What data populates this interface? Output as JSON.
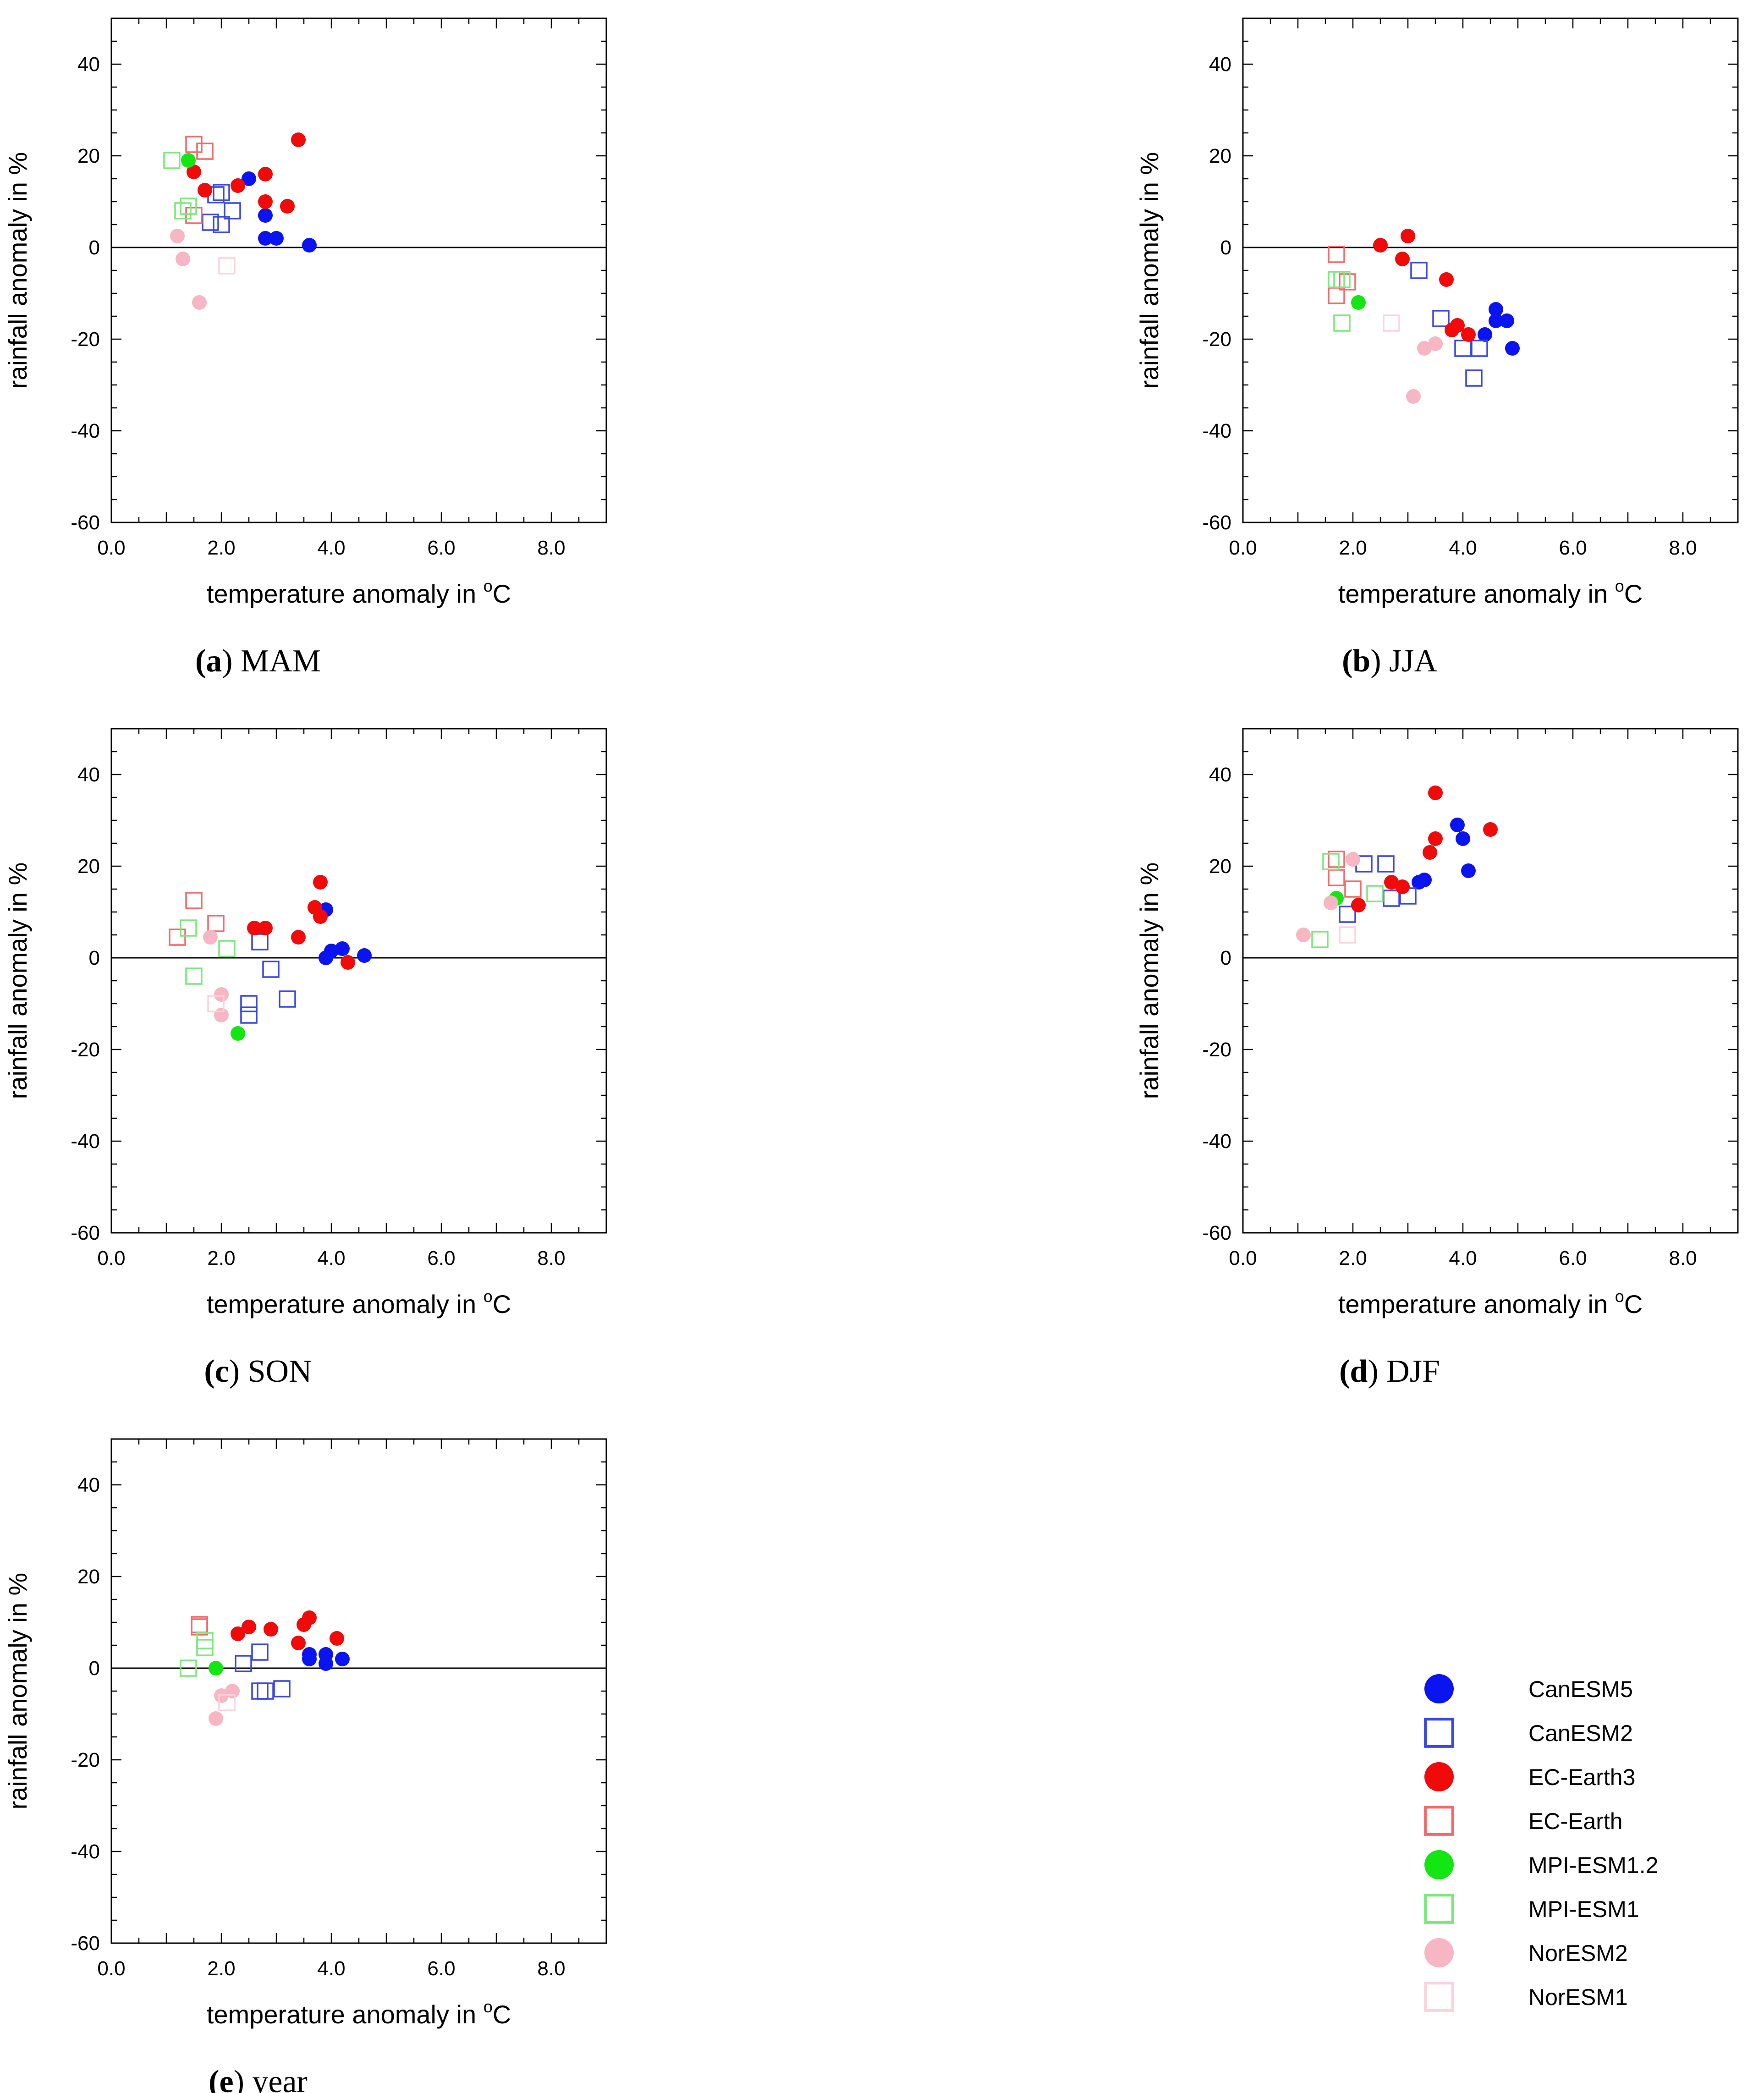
{
  "colors": {
    "CanESM5": "#0a14f0",
    "CanESM2": "#3a48e0",
    "EC-Earth3": "#f00a0a",
    "EC-Earth": "#f26a6a",
    "MPI-ESM1.2": "#14e614",
    "MPI-ESM1": "#7ce87c",
    "NorESM2": "#f7b6c3",
    "NorESM1": "#fbd3dc",
    "axis": "#000000"
  },
  "legend": [
    {
      "name": "CanESM5",
      "marker": "circle"
    },
    {
      "name": "CanESM2",
      "marker": "square"
    },
    {
      "name": "EC-Earth3",
      "marker": "circle"
    },
    {
      "name": "EC-Earth",
      "marker": "square"
    },
    {
      "name": "MPI-ESM1.2",
      "marker": "circle"
    },
    {
      "name": "MPI-ESM1",
      "marker": "square"
    },
    {
      "name": "NorESM2",
      "marker": "circle"
    },
    {
      "name": "NorESM1",
      "marker": "square"
    }
  ],
  "axes": {
    "xlabel_main": "temperature anomaly in ",
    "xlabel_sup": "o",
    "xlabel_unit": "C",
    "ylabel": "rainfall anomaly in %",
    "xlim": [
      0,
      9
    ],
    "ylim": [
      -60,
      50
    ],
    "xticks": [
      0,
      2,
      4,
      6,
      8
    ],
    "xtick_labels": [
      "0.0",
      "2.0",
      "4.0",
      "6.0",
      "8.0"
    ],
    "yticks": [
      40,
      20,
      0,
      -20,
      -40,
      -60
    ],
    "ytick_labels": [
      "40",
      "20",
      "0",
      "-20",
      "-40",
      "-60"
    ]
  },
  "chart_data": [
    {
      "type": "scatter",
      "caption_letter": "(a)",
      "caption_text": " MAM",
      "series": [
        {
          "name": "CanESM5",
          "points": [
            [
              2.5,
              15
            ],
            [
              2.8,
              7
            ],
            [
              2.8,
              2
            ],
            [
              3.0,
              2
            ],
            [
              3.6,
              0.5
            ]
          ]
        },
        {
          "name": "CanESM2",
          "points": [
            [
              1.9,
              11.5
            ],
            [
              2.0,
              12
            ],
            [
              2.2,
              8
            ],
            [
              1.8,
              5.5
            ],
            [
              2.0,
              5
            ]
          ]
        },
        {
          "name": "EC-Earth3",
          "points": [
            [
              3.4,
              23.5
            ],
            [
              1.5,
              16.5
            ],
            [
              1.7,
              12.5
            ],
            [
              2.3,
              13.5
            ],
            [
              2.8,
              16
            ],
            [
              2.8,
              10
            ],
            [
              3.2,
              9
            ]
          ]
        },
        {
          "name": "EC-Earth",
          "points": [
            [
              1.5,
              22.5
            ],
            [
              1.7,
              21
            ],
            [
              1.5,
              7
            ]
          ]
        },
        {
          "name": "MPI-ESM1.2",
          "points": [
            [
              1.4,
              19
            ]
          ]
        },
        {
          "name": "MPI-ESM1",
          "points": [
            [
              1.1,
              19
            ],
            [
              1.3,
              8
            ],
            [
              1.4,
              9
            ]
          ]
        },
        {
          "name": "NorESM2",
          "points": [
            [
              1.2,
              2.5
            ],
            [
              1.3,
              -2.5
            ],
            [
              1.6,
              -12
            ]
          ]
        },
        {
          "name": "NorESM1",
          "points": [
            [
              2.1,
              -4
            ]
          ]
        }
      ]
    },
    {
      "type": "scatter",
      "caption_letter": "(b)",
      "caption_text": " JJA",
      "series": [
        {
          "name": "CanESM5",
          "points": [
            [
              4.4,
              -19
            ],
            [
              4.6,
              -13.5
            ],
            [
              4.6,
              -16
            ],
            [
              4.8,
              -16
            ],
            [
              4.9,
              -22
            ]
          ]
        },
        {
          "name": "CanESM2",
          "points": [
            [
              3.2,
              -5
            ],
            [
              3.6,
              -15.5
            ],
            [
              4.0,
              -22
            ],
            [
              4.3,
              -22
            ],
            [
              4.2,
              -28.5
            ]
          ]
        },
        {
          "name": "EC-Earth3",
          "points": [
            [
              2.5,
              0.5
            ],
            [
              3.0,
              2.5
            ],
            [
              2.9,
              -2.5
            ],
            [
              3.7,
              -7
            ],
            [
              3.8,
              -18
            ],
            [
              3.9,
              -17
            ],
            [
              4.1,
              -19
            ]
          ]
        },
        {
          "name": "EC-Earth",
          "points": [
            [
              1.7,
              -1.5
            ],
            [
              1.7,
              -10.5
            ],
            [
              1.9,
              -7.5
            ]
          ]
        },
        {
          "name": "MPI-ESM1.2",
          "points": [
            [
              2.1,
              -12
            ]
          ]
        },
        {
          "name": "MPI-ESM1",
          "points": [
            [
              1.7,
              -7
            ],
            [
              1.8,
              -7
            ],
            [
              1.8,
              -16.5
            ]
          ]
        },
        {
          "name": "NorESM2",
          "points": [
            [
              3.3,
              -22
            ],
            [
              3.5,
              -21
            ],
            [
              3.1,
              -32.5
            ]
          ]
        },
        {
          "name": "NorESM1",
          "points": [
            [
              2.7,
              -16.5
            ]
          ]
        }
      ]
    },
    {
      "type": "scatter",
      "caption_letter": "(c)",
      "caption_text": " SON",
      "series": [
        {
          "name": "CanESM5",
          "points": [
            [
              3.9,
              10.5
            ],
            [
              3.9,
              0
            ],
            [
              4.0,
              1.5
            ],
            [
              4.2,
              2
            ],
            [
              4.6,
              0.5
            ]
          ]
        },
        {
          "name": "CanESM2",
          "points": [
            [
              2.7,
              3.5
            ],
            [
              2.9,
              -2.5
            ],
            [
              2.5,
              -10
            ],
            [
              2.5,
              -12.5
            ],
            [
              3.2,
              -9
            ]
          ]
        },
        {
          "name": "EC-Earth3",
          "points": [
            [
              3.8,
              16.5
            ],
            [
              3.7,
              11
            ],
            [
              3.8,
              9
            ],
            [
              2.6,
              6.5
            ],
            [
              2.8,
              6.5
            ],
            [
              3.4,
              4.5
            ],
            [
              4.3,
              -1
            ]
          ]
        },
        {
          "name": "EC-Earth",
          "points": [
            [
              1.5,
              12.5
            ],
            [
              1.2,
              4.5
            ],
            [
              1.9,
              7.5
            ]
          ]
        },
        {
          "name": "MPI-ESM1.2",
          "points": [
            [
              2.3,
              -16.5
            ]
          ]
        },
        {
          "name": "MPI-ESM1",
          "points": [
            [
              1.4,
              6.5
            ],
            [
              2.1,
              2
            ],
            [
              1.5,
              -4
            ]
          ]
        },
        {
          "name": "NorESM2",
          "points": [
            [
              1.8,
              4.5
            ],
            [
              2.0,
              -8
            ],
            [
              2.0,
              -12.5
            ]
          ]
        },
        {
          "name": "NorESM1",
          "points": [
            [
              1.9,
              -10
            ]
          ]
        }
      ]
    },
    {
      "type": "scatter",
      "caption_letter": "(d)",
      "caption_text": " DJF",
      "series": [
        {
          "name": "CanESM5",
          "points": [
            [
              3.9,
              29
            ],
            [
              4.0,
              26
            ],
            [
              4.1,
              19
            ],
            [
              3.2,
              16.5
            ],
            [
              3.3,
              17
            ]
          ]
        },
        {
          "name": "CanESM2",
          "points": [
            [
              2.2,
              20.5
            ],
            [
              2.6,
              20.5
            ],
            [
              1.9,
              9.5
            ],
            [
              2.7,
              13
            ],
            [
              3.0,
              13.5
            ]
          ]
        },
        {
          "name": "EC-Earth3",
          "points": [
            [
              3.5,
              36
            ],
            [
              3.5,
              26
            ],
            [
              3.4,
              23
            ],
            [
              4.5,
              28
            ],
            [
              2.7,
              16.5
            ],
            [
              2.9,
              15.5
            ],
            [
              2.1,
              11.5
            ]
          ]
        },
        {
          "name": "EC-Earth",
          "points": [
            [
              1.7,
              21.5
            ],
            [
              1.7,
              17.5
            ],
            [
              2.0,
              15
            ]
          ]
        },
        {
          "name": "MPI-ESM1.2",
          "points": [
            [
              1.7,
              13
            ]
          ]
        },
        {
          "name": "MPI-ESM1",
          "points": [
            [
              1.6,
              21
            ],
            [
              2.4,
              14
            ],
            [
              1.4,
              4
            ]
          ]
        },
        {
          "name": "NorESM2",
          "points": [
            [
              2.0,
              21.5
            ],
            [
              1.6,
              12
            ],
            [
              1.1,
              5
            ]
          ]
        },
        {
          "name": "NorESM1",
          "points": [
            [
              1.9,
              5
            ]
          ]
        }
      ]
    },
    {
      "type": "scatter",
      "caption_letter": "(e)",
      "caption_text": " year",
      "series": [
        {
          "name": "CanESM5",
          "points": [
            [
              3.6,
              3
            ],
            [
              3.6,
              2
            ],
            [
              3.9,
              3
            ],
            [
              3.9,
              1
            ],
            [
              4.2,
              2
            ]
          ]
        },
        {
          "name": "CanESM2",
          "points": [
            [
              2.4,
              1
            ],
            [
              2.7,
              3.5
            ],
            [
              2.7,
              -5
            ],
            [
              2.8,
              -5
            ],
            [
              3.1,
              -4.5
            ]
          ]
        },
        {
          "name": "EC-Earth3",
          "points": [
            [
              2.3,
              7.5
            ],
            [
              2.5,
              9
            ],
            [
              2.9,
              8.5
            ],
            [
              3.5,
              9.5
            ],
            [
              3.6,
              11
            ],
            [
              3.4,
              5.5
            ],
            [
              4.1,
              6.5
            ]
          ]
        },
        {
          "name": "EC-Earth",
          "points": [
            [
              1.6,
              9
            ],
            [
              1.6,
              9.5
            ]
          ]
        },
        {
          "name": "MPI-ESM1.2",
          "points": [
            [
              1.9,
              0
            ]
          ]
        },
        {
          "name": "MPI-ESM1",
          "points": [
            [
              1.4,
              0
            ],
            [
              1.7,
              6
            ],
            [
              1.7,
              4.5
            ]
          ]
        },
        {
          "name": "NorESM2",
          "points": [
            [
              2.0,
              -6
            ],
            [
              2.2,
              -5
            ],
            [
              1.9,
              -11
            ]
          ]
        },
        {
          "name": "NorESM1",
          "points": [
            [
              2.1,
              -7.5
            ]
          ]
        }
      ]
    }
  ]
}
